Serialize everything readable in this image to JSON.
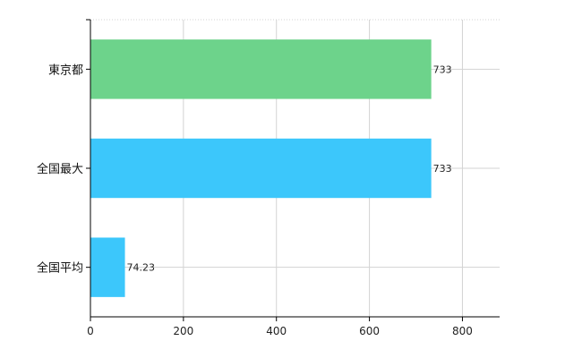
{
  "chart_data": {
    "type": "bar",
    "orientation": "horizontal",
    "categories": [
      "東京都",
      "全国最大",
      "全国平均"
    ],
    "values": [
      733,
      733,
      74.23
    ],
    "value_labels": [
      "733",
      "733",
      "74.23"
    ],
    "bar_colors": [
      "#6dd38b",
      "#3cc7fb",
      "#3cc7fb"
    ],
    "xlim": [
      0,
      880
    ],
    "xticks": [
      0,
      200,
      400,
      600,
      800
    ],
    "xtick_labels": [
      "0",
      "200",
      "400",
      "600",
      "800"
    ],
    "grid": true,
    "grid_color": "#d3d3d3",
    "legend": false,
    "title": "",
    "xlabel": "",
    "ylabel": ""
  }
}
